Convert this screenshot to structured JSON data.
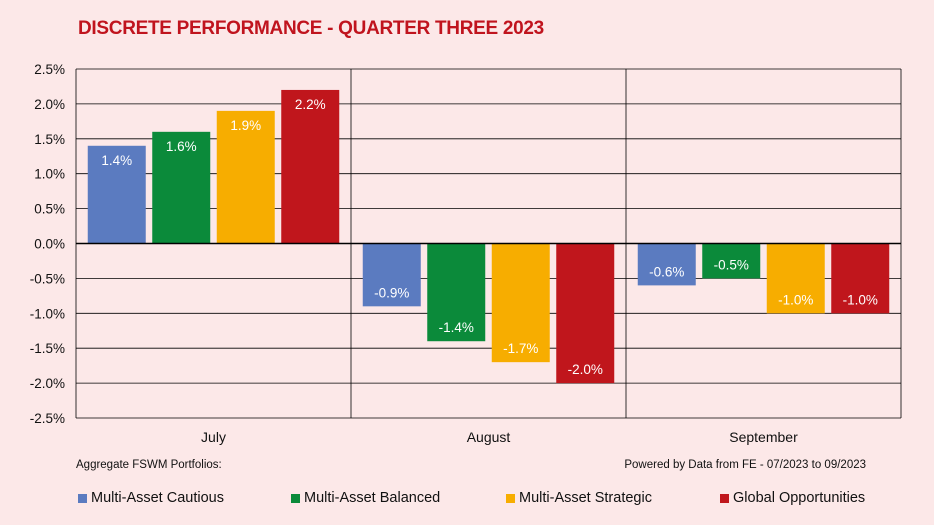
{
  "title": "DISCRETE PERFORMANCE - QUARTER THREE 2023",
  "footnote_left": "Aggregate FSWM Portfolios:",
  "footnote_right": "Powered by Data from FE - 07/2023 to 09/2023",
  "chart_data": {
    "type": "bar",
    "title": "DISCRETE PERFORMANCE - QUARTER THREE 2023",
    "xlabel": "",
    "ylabel": "",
    "categories": [
      "July",
      "August",
      "September"
    ],
    "ylim": [
      -2.5,
      2.5
    ],
    "yticks": [
      2.5,
      2.0,
      1.5,
      1.0,
      0.5,
      0.0,
      -0.5,
      -1.0,
      -1.5,
      -2.0,
      -2.5
    ],
    "ytick_labels": [
      "2.5%",
      "2.0%",
      "1.5%",
      "1.0%",
      "0.5%",
      "0.0%",
      "-0.5%",
      "-1.0%",
      "-1.5%",
      "-2.0%",
      "-2.5%"
    ],
    "grid": true,
    "legend_position": "bottom",
    "series": [
      {
        "name": "Multi-Asset Cautious",
        "color": "#5b7bc0",
        "values": [
          1.4,
          -0.9,
          -0.6
        ],
        "labels": [
          "1.4%",
          "-0.9%",
          "-0.6%"
        ]
      },
      {
        "name": "Multi-Asset Balanced",
        "color": "#0b8a3a",
        "values": [
          1.6,
          -1.4,
          -0.5
        ],
        "labels": [
          "1.6%",
          "-1.4%",
          "-0.5%"
        ]
      },
      {
        "name": "Multi-Asset Strategic",
        "color": "#f7ad00",
        "values": [
          1.9,
          -1.7,
          -1.0
        ],
        "labels": [
          "1.9%",
          "-1.7%",
          "-1.0%"
        ]
      },
      {
        "name": "Global Opportunities",
        "color": "#c0161c",
        "values": [
          2.2,
          -2.0,
          -1.0
        ],
        "labels": [
          "2.2%",
          "-2.0%",
          "-1.0%"
        ]
      }
    ]
  }
}
